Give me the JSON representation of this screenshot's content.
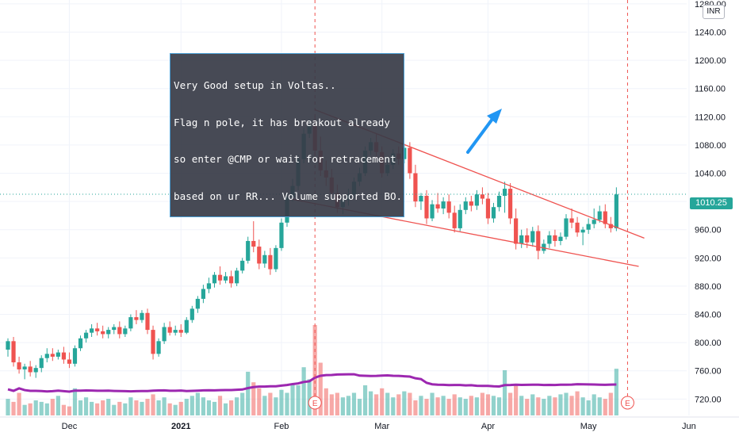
{
  "chart_data": {
    "type": "candlestick",
    "title": "",
    "currency": "INR",
    "last_price": "1010.25",
    "y_axis": {
      "ylim": [
        708,
        1290
      ],
      "tick_labels": [
        "720.00",
        "760.00",
        "800.00",
        "840.00",
        "880.00",
        "920.00",
        "960.00",
        "1000.00",
        "1040.00",
        "1080.00",
        "1120.00",
        "1160.00",
        "1200.00",
        "1240.00",
        "1280.00"
      ],
      "tick_values": [
        720,
        760,
        800,
        840,
        880,
        920,
        960,
        1000,
        1040,
        1080,
        1120,
        1160,
        1200,
        1240,
        1280
      ]
    },
    "x_axis": {
      "labels": [
        {
          "text": "Dec",
          "bar": 11,
          "bold": false
        },
        {
          "text": "2021",
          "bar": 31,
          "bold": true
        },
        {
          "text": "Feb",
          "bar": 49,
          "bold": false
        },
        {
          "text": "Mar",
          "bar": 67,
          "bold": false
        },
        {
          "text": "Apr",
          "bar": 86,
          "bold": false
        },
        {
          "text": "May",
          "bar": 104,
          "bold": false
        },
        {
          "text": "Jun",
          "bar": 122,
          "bold": false
        }
      ]
    },
    "candles": [
      {
        "o": 790,
        "h": 806,
        "c": 802,
        "l": 780
      },
      {
        "o": 802,
        "h": 808,
        "c": 772,
        "l": 766
      },
      {
        "o": 772,
        "h": 780,
        "c": 762,
        "l": 756
      },
      {
        "o": 762,
        "h": 770,
        "c": 766,
        "l": 748
      },
      {
        "o": 766,
        "h": 774,
        "c": 758,
        "l": 752
      },
      {
        "o": 758,
        "h": 768,
        "c": 764,
        "l": 750
      },
      {
        "o": 764,
        "h": 782,
        "c": 778,
        "l": 758
      },
      {
        "o": 778,
        "h": 792,
        "c": 784,
        "l": 772
      },
      {
        "o": 784,
        "h": 792,
        "c": 780,
        "l": 774
      },
      {
        "o": 780,
        "h": 790,
        "c": 786,
        "l": 776
      },
      {
        "o": 786,
        "h": 794,
        "c": 776,
        "l": 770
      },
      {
        "o": 776,
        "h": 786,
        "c": 770,
        "l": 764
      },
      {
        "o": 770,
        "h": 796,
        "c": 792,
        "l": 766
      },
      {
        "o": 792,
        "h": 810,
        "c": 806,
        "l": 788
      },
      {
        "o": 806,
        "h": 818,
        "c": 814,
        "l": 800
      },
      {
        "o": 814,
        "h": 826,
        "c": 820,
        "l": 808
      },
      {
        "o": 820,
        "h": 828,
        "c": 816,
        "l": 810
      },
      {
        "o": 816,
        "h": 824,
        "c": 812,
        "l": 806
      },
      {
        "o": 812,
        "h": 822,
        "c": 818,
        "l": 806
      },
      {
        "o": 818,
        "h": 826,
        "c": 822,
        "l": 812
      },
      {
        "o": 822,
        "h": 830,
        "c": 812,
        "l": 806
      },
      {
        "o": 812,
        "h": 824,
        "c": 820,
        "l": 808
      },
      {
        "o": 820,
        "h": 840,
        "c": 836,
        "l": 816
      },
      {
        "o": 836,
        "h": 846,
        "c": 832,
        "l": 826
      },
      {
        "o": 832,
        "h": 846,
        "c": 842,
        "l": 828
      },
      {
        "o": 842,
        "h": 848,
        "c": 818,
        "l": 812
      },
      {
        "o": 818,
        "h": 824,
        "c": 784,
        "l": 776
      },
      {
        "o": 784,
        "h": 806,
        "c": 802,
        "l": 780
      },
      {
        "o": 802,
        "h": 828,
        "c": 822,
        "l": 798
      },
      {
        "o": 822,
        "h": 830,
        "c": 814,
        "l": 810
      },
      {
        "o": 814,
        "h": 824,
        "c": 818,
        "l": 810
      },
      {
        "o": 818,
        "h": 826,
        "c": 814,
        "l": 808
      },
      {
        "o": 814,
        "h": 836,
        "c": 832,
        "l": 812
      },
      {
        "o": 832,
        "h": 852,
        "c": 848,
        "l": 828
      },
      {
        "o": 848,
        "h": 866,
        "c": 862,
        "l": 842
      },
      {
        "o": 862,
        "h": 882,
        "c": 876,
        "l": 856
      },
      {
        "o": 876,
        "h": 892,
        "c": 884,
        "l": 870
      },
      {
        "o": 884,
        "h": 900,
        "c": 896,
        "l": 878
      },
      {
        "o": 896,
        "h": 908,
        "c": 888,
        "l": 882
      },
      {
        "o": 888,
        "h": 900,
        "c": 894,
        "l": 884
      },
      {
        "o": 894,
        "h": 902,
        "c": 884,
        "l": 878
      },
      {
        "o": 884,
        "h": 906,
        "c": 902,
        "l": 880
      },
      {
        "o": 902,
        "h": 920,
        "c": 916,
        "l": 898
      },
      {
        "o": 916,
        "h": 950,
        "c": 944,
        "l": 912
      },
      {
        "o": 944,
        "h": 972,
        "c": 936,
        "l": 928
      },
      {
        "o": 936,
        "h": 946,
        "c": 912,
        "l": 904
      },
      {
        "o": 912,
        "h": 930,
        "c": 924,
        "l": 906
      },
      {
        "o": 924,
        "h": 934,
        "c": 904,
        "l": 896
      },
      {
        "o": 904,
        "h": 938,
        "c": 934,
        "l": 900
      },
      {
        "o": 934,
        "h": 976,
        "c": 970,
        "l": 930
      },
      {
        "o": 970,
        "h": 1012,
        "c": 1006,
        "l": 964
      },
      {
        "o": 1006,
        "h": 1032,
        "c": 1022,
        "l": 1000
      },
      {
        "o": 1022,
        "h": 1066,
        "c": 1060,
        "l": 1016
      },
      {
        "o": 1060,
        "h": 1104,
        "c": 1096,
        "l": 1054
      },
      {
        "o": 1096,
        "h": 1116,
        "c": 1108,
        "l": 1090
      },
      {
        "o": 1108,
        "h": 1120,
        "c": 1072,
        "l": 1064
      },
      {
        "o": 1072,
        "h": 1092,
        "c": 1044,
        "l": 1036
      },
      {
        "o": 1044,
        "h": 1058,
        "c": 1034,
        "l": 1022
      },
      {
        "o": 1034,
        "h": 1046,
        "c": 1012,
        "l": 1004
      },
      {
        "o": 1012,
        "h": 1024,
        "c": 992,
        "l": 984
      },
      {
        "o": 992,
        "h": 1010,
        "c": 1002,
        "l": 982
      },
      {
        "o": 1002,
        "h": 1018,
        "c": 1010,
        "l": 994
      },
      {
        "o": 1010,
        "h": 1034,
        "c": 1028,
        "l": 1004
      },
      {
        "o": 1028,
        "h": 1048,
        "c": 1040,
        "l": 1022
      },
      {
        "o": 1040,
        "h": 1078,
        "c": 1072,
        "l": 1036
      },
      {
        "o": 1072,
        "h": 1090,
        "c": 1084,
        "l": 1066
      },
      {
        "o": 1084,
        "h": 1096,
        "c": 1070,
        "l": 1062
      },
      {
        "o": 1070,
        "h": 1078,
        "c": 1040,
        "l": 1034
      },
      {
        "o": 1040,
        "h": 1060,
        "c": 1052,
        "l": 1036
      },
      {
        "o": 1052,
        "h": 1074,
        "c": 1068,
        "l": 1046
      },
      {
        "o": 1068,
        "h": 1078,
        "c": 1060,
        "l": 1052
      },
      {
        "o": 1060,
        "h": 1082,
        "c": 1076,
        "l": 1054
      },
      {
        "o": 1076,
        "h": 1084,
        "c": 1040,
        "l": 1032
      },
      {
        "o": 1040,
        "h": 1052,
        "c": 1000,
        "l": 992
      },
      {
        "o": 1000,
        "h": 1012,
        "c": 1008,
        "l": 988
      },
      {
        "o": 1008,
        "h": 1016,
        "c": 976,
        "l": 968
      },
      {
        "o": 976,
        "h": 1002,
        "c": 996,
        "l": 972
      },
      {
        "o": 996,
        "h": 1012,
        "c": 990,
        "l": 984
      },
      {
        "o": 990,
        "h": 1006,
        "c": 1000,
        "l": 982
      },
      {
        "o": 1000,
        "h": 1010,
        "c": 984,
        "l": 976
      },
      {
        "o": 984,
        "h": 994,
        "c": 962,
        "l": 956
      },
      {
        "o": 962,
        "h": 996,
        "c": 988,
        "l": 958
      },
      {
        "o": 988,
        "h": 1006,
        "c": 1000,
        "l": 982
      },
      {
        "o": 1000,
        "h": 1008,
        "c": 994,
        "l": 986
      },
      {
        "o": 994,
        "h": 1016,
        "c": 1010,
        "l": 988
      },
      {
        "o": 1010,
        "h": 1020,
        "c": 1004,
        "l": 996
      },
      {
        "o": 1004,
        "h": 1012,
        "c": 976,
        "l": 968
      },
      {
        "o": 976,
        "h": 998,
        "c": 992,
        "l": 970
      },
      {
        "o": 992,
        "h": 1014,
        "c": 1008,
        "l": 986
      },
      {
        "o": 1008,
        "h": 1028,
        "c": 1018,
        "l": 984
      },
      {
        "o": 1018,
        "h": 1026,
        "c": 976,
        "l": 968
      },
      {
        "o": 976,
        "h": 990,
        "c": 940,
        "l": 932
      },
      {
        "o": 940,
        "h": 960,
        "c": 952,
        "l": 934
      },
      {
        "o": 952,
        "h": 962,
        "c": 942,
        "l": 934
      },
      {
        "o": 942,
        "h": 964,
        "c": 958,
        "l": 936
      },
      {
        "o": 958,
        "h": 966,
        "c": 930,
        "l": 918
      },
      {
        "o": 930,
        "h": 946,
        "c": 940,
        "l": 926
      },
      {
        "o": 940,
        "h": 958,
        "c": 952,
        "l": 934
      },
      {
        "o": 952,
        "h": 960,
        "c": 944,
        "l": 936
      },
      {
        "o": 944,
        "h": 956,
        "c": 950,
        "l": 938
      },
      {
        "o": 950,
        "h": 982,
        "c": 976,
        "l": 946
      },
      {
        "o": 976,
        "h": 990,
        "c": 970,
        "l": 962
      },
      {
        "o": 970,
        "h": 978,
        "c": 956,
        "l": 950
      },
      {
        "o": 956,
        "h": 964,
        "c": 960,
        "l": 938
      },
      {
        "o": 960,
        "h": 976,
        "c": 968,
        "l": 954
      },
      {
        "o": 968,
        "h": 990,
        "c": 974,
        "l": 962
      },
      {
        "o": 974,
        "h": 994,
        "c": 986,
        "l": 970
      },
      {
        "o": 986,
        "h": 996,
        "c": 968,
        "l": 962
      },
      {
        "o": 968,
        "h": 978,
        "c": 962,
        "l": 956
      },
      {
        "o": 962,
        "h": 1020,
        "c": 1010,
        "l": 958
      }
    ],
    "volume": [
      22,
      18,
      30,
      14,
      16,
      20,
      18,
      16,
      22,
      26,
      14,
      12,
      36,
      20,
      24,
      18,
      16,
      20,
      22,
      14,
      18,
      16,
      24,
      20,
      18,
      22,
      28,
      20,
      24,
      16,
      14,
      18,
      22,
      26,
      30,
      24,
      20,
      18,
      26,
      16,
      20,
      24,
      30,
      58,
      44,
      36,
      26,
      30,
      24,
      34,
      30,
      42,
      40,
      64,
      48,
      120,
      70,
      36,
      28,
      30,
      24,
      26,
      30,
      22,
      40,
      32,
      28,
      36,
      30,
      24,
      28,
      32,
      30,
      20,
      26,
      22,
      30,
      24,
      26,
      22,
      28,
      24,
      22,
      26,
      24,
      30,
      28,
      26,
      24,
      60,
      30,
      40,
      26,
      22,
      28,
      24,
      22,
      26,
      24,
      28,
      30,
      26,
      32,
      24,
      20,
      28,
      24,
      22,
      30,
      62
    ],
    "volume_ma_color": "#9c27b0",
    "up_color": "#26a69a",
    "down_color": "#ef5350",
    "annotation_lines": [
      "Very Good setup in Voltas..",
      "Flag n pole, it has breakout already",
      "so enter @CMP or wait for retracement",
      "based on ur RR... Volume supported BO.."
    ],
    "earnings_markers": [
      {
        "bar": 55,
        "label": "E"
      },
      {
        "bar": 111,
        "label": "E"
      }
    ],
    "trendlines": [
      {
        "from": {
          "bar": 55,
          "price": 1130
        },
        "to": {
          "bar": 114,
          "price": 948
        }
      },
      {
        "from": {
          "bar": 51,
          "price": 1003
        },
        "to": {
          "bar": 113,
          "price": 908
        }
      }
    ]
  }
}
